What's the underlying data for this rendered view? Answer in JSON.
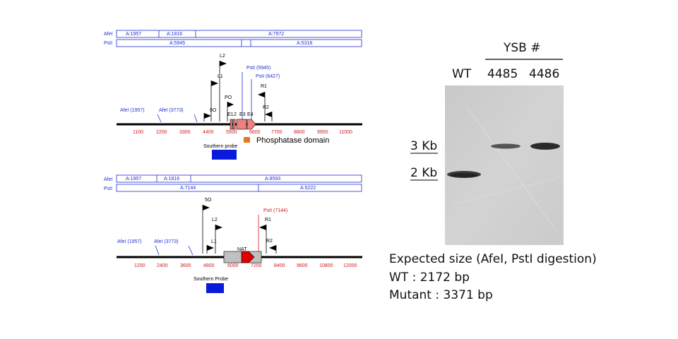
{
  "top_map": {
    "afel_label": "AfeI",
    "psti_label": "PstI",
    "afel_frags": [
      "A:1957",
      "A:1816",
      "A:7972"
    ],
    "psti_frags": [
      "A:5945",
      "A:5318"
    ],
    "ticks": [
      "1100",
      "2200",
      "3300",
      "4400",
      "5500",
      "6600",
      "7700",
      "8800",
      "9900",
      "11000"
    ],
    "sites": [
      "AfeI (1957)",
      "AfeI (3773)",
      "PstI (5945)",
      "PstI (6427)"
    ],
    "primers": [
      "L2",
      "L1",
      "PO",
      "5O",
      "R1",
      "R2"
    ],
    "exons": [
      "E1",
      "2",
      "E3",
      "E4"
    ],
    "domain_label": "Phosphatase domain",
    "probe_label": "Southern probe"
  },
  "bottom_map": {
    "afel_label": "AfeI",
    "psti_label": "PstI",
    "afel_frags": [
      "A:1957",
      "A:1816",
      "A:8593"
    ],
    "psti_frags": [
      "A:7144",
      "A:5222"
    ],
    "ticks": [
      "1200",
      "2400",
      "3600",
      "4800",
      "6000",
      "7200",
      "8400",
      "9600",
      "10800",
      "12000"
    ],
    "sites": [
      "AfeI (1957)",
      "AfeI (3773)",
      "PstI (7144)"
    ],
    "primers": [
      "5O",
      "L2",
      "L1",
      "R1",
      "R2"
    ],
    "nat_label": "NAT",
    "probe_label": "Southern Probe"
  },
  "gel": {
    "header": "YSB #",
    "lanes": [
      "WT",
      "4485",
      "4486"
    ],
    "markers": [
      "3 Kb",
      "2 Kb"
    ]
  },
  "caption": {
    "line1": "Expected size (AfeI,  PstI digestion)",
    "line2": "WT : 2172 bp",
    "line3": "Mutant : 3371 bp"
  },
  "colors": {
    "blue": "#1f2fd0",
    "red": "#d01a1a",
    "probe": "#0a1adb",
    "domain": "#e57a1c",
    "exon": "#f08080",
    "nat": "#c0c0c0"
  }
}
